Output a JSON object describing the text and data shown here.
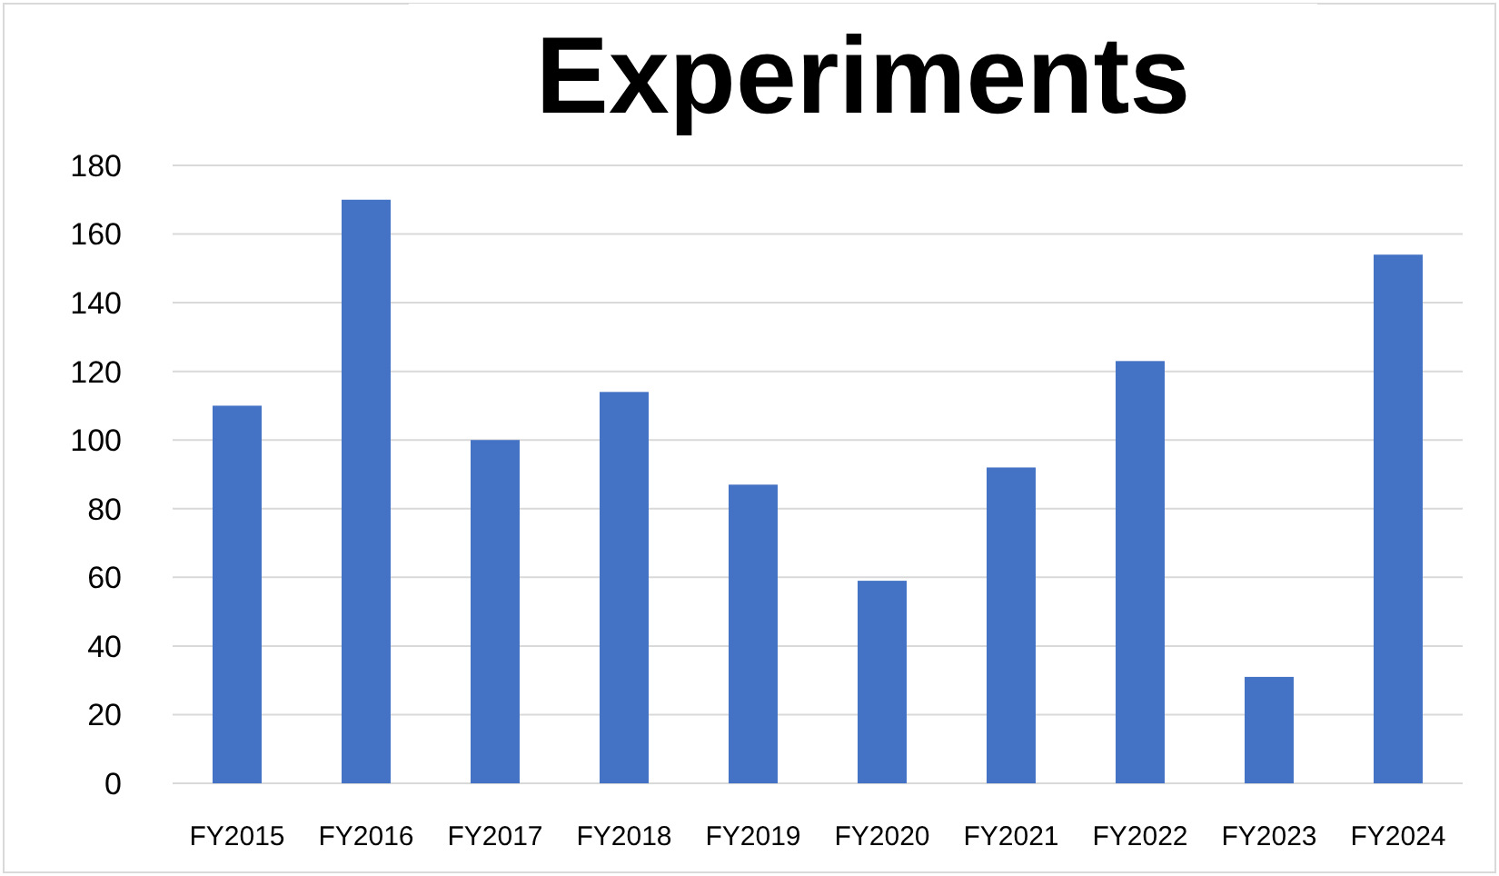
{
  "chart_data": {
    "type": "bar",
    "title": "Experiments",
    "categories": [
      "FY2015",
      "FY2016",
      "FY2017",
      "FY2018",
      "FY2019",
      "FY2020",
      "FY2021",
      "FY2022",
      "FY2023",
      "FY2024"
    ],
    "values": [
      110,
      170,
      100,
      114,
      87,
      59,
      92,
      123,
      31,
      154
    ],
    "color": "#4472c4",
    "ylim": [
      0,
      180
    ],
    "yticks": [
      0,
      20,
      40,
      60,
      80,
      100,
      120,
      140,
      160,
      180
    ],
    "grid": "y"
  }
}
